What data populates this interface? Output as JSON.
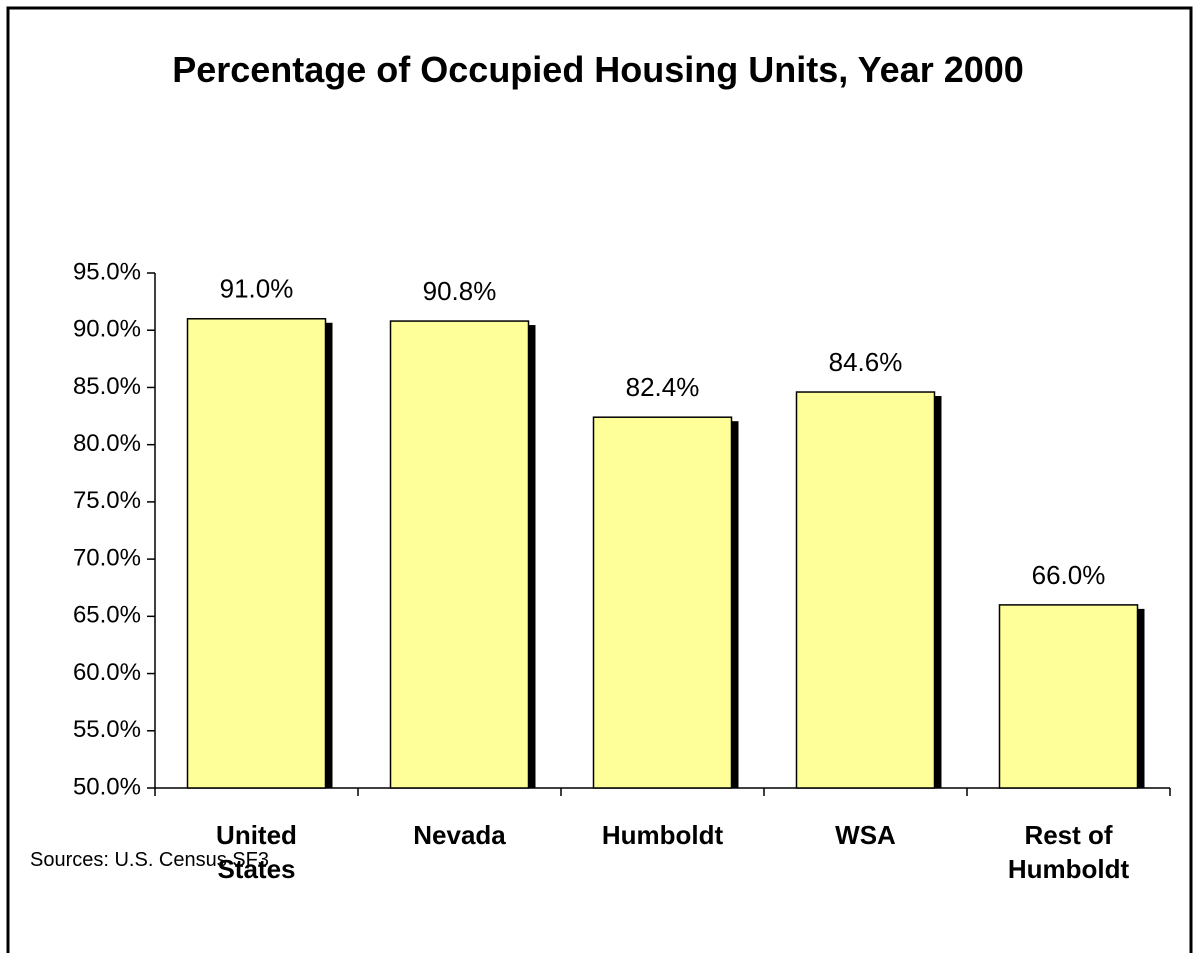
{
  "chart_data": {
    "type": "bar",
    "title": "Percentage of Occupied Housing Units, Year 2000",
    "source": "Sources: U.S. Census SF3",
    "categories": [
      "United States",
      "Nevada",
      "Humboldt",
      "WSA",
      "Rest of Humboldt"
    ],
    "values": [
      91.0,
      90.8,
      82.4,
      84.6,
      66.0
    ],
    "value_labels": [
      "91.0%",
      "90.8%",
      "82.4%",
      "84.6%",
      "66.0%"
    ],
    "color": "#ffff99",
    "ylim": [
      50,
      95
    ],
    "yticks": [
      {
        "value": 50,
        "label": "50.0%"
      },
      {
        "value": 55,
        "label": "55.0%"
      },
      {
        "value": 60,
        "label": "60.0%"
      },
      {
        "value": 65,
        "label": "65.0%"
      },
      {
        "value": 70,
        "label": "70.0%"
      },
      {
        "value": 75,
        "label": "75.0%"
      },
      {
        "value": 80,
        "label": "80.0%"
      },
      {
        "value": 85,
        "label": "85.0%"
      },
      {
        "value": 90,
        "label": "90.0%"
      },
      {
        "value": 95,
        "label": "95.0%"
      }
    ],
    "grid": false
  }
}
